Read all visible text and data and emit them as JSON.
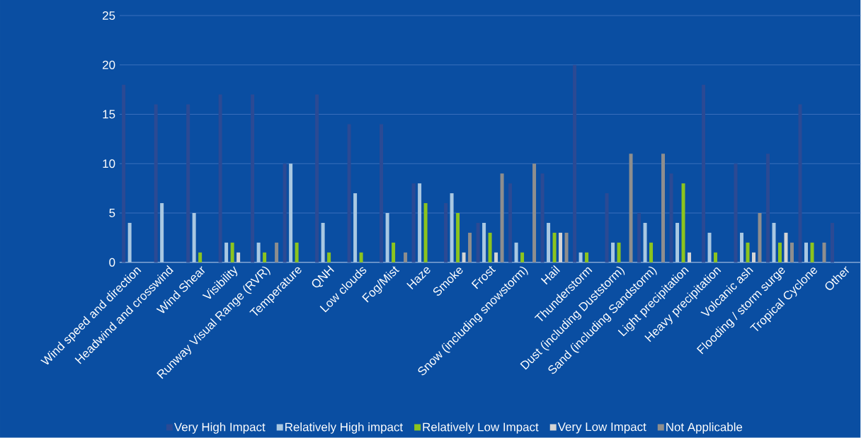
{
  "chart_data": {
    "type": "bar",
    "categories": [
      "Wind speed and direction",
      "Headwind and crosswind",
      "Wind Shear",
      "Visibility",
      "Runway Visual Range (RVR)",
      "Temperature",
      "QNH",
      "Low clouds",
      "Fog/Mist",
      "Haze",
      "Smoke",
      "Frost",
      "Snow (including snowstorm)",
      "Hail",
      "Thunderstorm",
      "Dust (including Duststorm)",
      "Sand (including Sandstorm)",
      "Light precipitation",
      "Heavy precipitation",
      "Volcanic ash",
      "Flooding / storm surge",
      "Tropical Cyclone",
      "Other"
    ],
    "series": [
      {
        "name": "Very High Impact",
        "color": "#2b4a94",
        "values": [
          18,
          16,
          16,
          17,
          17,
          10,
          17,
          14,
          14,
          8,
          6,
          4,
          8,
          9,
          20,
          7,
          5,
          9,
          18,
          10,
          11,
          16,
          4
        ]
      },
      {
        "name": "Relatively High impact",
        "color": "#a9c8e2",
        "values": [
          4,
          6,
          5,
          2,
          2,
          10,
          4,
          7,
          5,
          8,
          7,
          4,
          2,
          4,
          1,
          2,
          4,
          4,
          3,
          3,
          4,
          2,
          null
        ]
      },
      {
        "name": "Relatively Low Impact",
        "color": "#8cc41e",
        "values": [
          0,
          0,
          1,
          2,
          1,
          2,
          1,
          1,
          2,
          6,
          5,
          3,
          1,
          3,
          1,
          2,
          2,
          8,
          1,
          2,
          2,
          2,
          null
        ]
      },
      {
        "name": "Very Low Impact",
        "color": "#d4d4d4",
        "values": [
          0,
          0,
          0,
          1,
          0,
          0,
          0,
          0,
          0,
          0,
          1,
          1,
          0,
          3,
          0,
          0,
          0,
          1,
          0,
          1,
          3,
          0,
          null
        ]
      },
      {
        "name": "Not Applicable",
        "color": "#8e8e8e",
        "values": [
          0,
          0,
          0,
          0,
          2,
          0,
          0,
          0,
          1,
          0,
          3,
          9,
          10,
          3,
          0,
          11,
          11,
          0,
          0,
          5,
          2,
          2,
          null
        ]
      }
    ],
    "ylim": [
      0,
      25
    ],
    "yticks": [
      0,
      5,
      10,
      15,
      20,
      25
    ],
    "grid": "y",
    "legend": "bottom"
  }
}
